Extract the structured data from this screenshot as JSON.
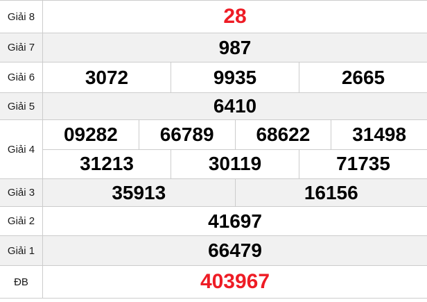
{
  "colors": {
    "highlight_red": "#ee1c25",
    "alt_row_bg": "#f1f1f1",
    "border": "#cccccc",
    "number_black": "#000000"
  },
  "prize_table": {
    "rows": [
      {
        "label": "Giải 8",
        "cells": [
          "28"
        ],
        "highlight": true
      },
      {
        "label": "Giải 7",
        "cells": [
          "987"
        ],
        "highlight": false
      },
      {
        "label": "Giải 6",
        "cells": [
          "3072",
          "9935",
          "2665"
        ],
        "highlight": false
      },
      {
        "label": "Giải 5",
        "cells": [
          "6410"
        ],
        "highlight": false
      },
      {
        "label": "Giải 4",
        "sub_rows": [
          [
            "09282",
            "66789",
            "68622",
            "31498"
          ],
          [
            "31213",
            "30119",
            "71735"
          ]
        ],
        "highlight": false
      },
      {
        "label": "Giải 3",
        "cells": [
          "35913",
          "16156"
        ],
        "highlight": false
      },
      {
        "label": "Giải 2",
        "cells": [
          "41697"
        ],
        "highlight": false
      },
      {
        "label": "Giải 1",
        "cells": [
          "66479"
        ],
        "highlight": false
      },
      {
        "label": "ĐB",
        "cells": [
          "403967"
        ],
        "highlight": true
      }
    ]
  }
}
